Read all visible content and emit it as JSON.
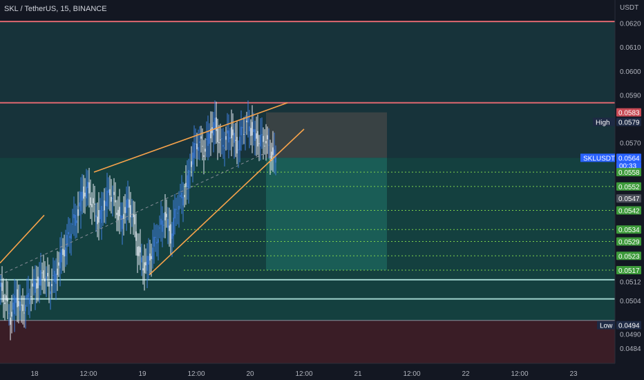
{
  "title": "SKL / TetherUS, 15, BINANCE",
  "currency": "USDT",
  "colors": {
    "background": "#131722",
    "upper_zone": "#17333a",
    "target_zone": "#14403f",
    "loss_zone": "#3a1d26",
    "candle": "#3f7fe0",
    "resistance": "#e06870",
    "support": "#9fd3cd",
    "trendline": "#f7a34b",
    "target_line": "#7fd34d",
    "stop_box": "#484848",
    "target_box": "#1d6a61"
  },
  "chart_data": {
    "type": "candlestick",
    "symbol": "SKLUSDT",
    "interval": "15",
    "exchange": "BINANCE",
    "xlabels": [
      "18",
      "12:00",
      "19",
      "12:00",
      "20",
      "12:00",
      "21",
      "12:00",
      "22",
      "12:00",
      "23"
    ],
    "ylim": [
      0.0478,
      0.063
    ],
    "yticks": [
      "0.0620",
      "0.0610",
      "0.0600",
      "0.0590",
      "0.0570",
      "0.0512",
      "0.0504",
      "0.0490",
      "0.0484"
    ],
    "horizontal_levels": {
      "resistance": [
        0.0621,
        0.0587
      ],
      "support": [
        0.0513,
        0.0505
      ],
      "bottom": 0.0496
    },
    "target_levels": [
      0.0558,
      0.0552,
      0.0542,
      0.0534,
      0.0529,
      0.0523,
      0.0517
    ],
    "price_tags": [
      {
        "label": "",
        "value": "0.0583",
        "kind": "stop"
      },
      {
        "label": "High",
        "value": "0.0579",
        "kind": "high"
      },
      {
        "label": "SKLUSDT",
        "value": "0.0564",
        "sub": "00:33",
        "kind": "last"
      },
      {
        "label": "",
        "value": "0.0558",
        "kind": "target"
      },
      {
        "label": "",
        "value": "0.0552",
        "kind": "target"
      },
      {
        "label": "",
        "value": "0.0547",
        "kind": "neutral"
      },
      {
        "label": "",
        "value": "0.0542",
        "kind": "target"
      },
      {
        "label": "",
        "value": "0.0534",
        "kind": "target"
      },
      {
        "label": "",
        "value": "0.0529",
        "kind": "target"
      },
      {
        "label": "",
        "value": "0.0523",
        "kind": "target"
      },
      {
        "label": "",
        "value": "0.0517",
        "kind": "target"
      },
      {
        "label": "Low",
        "value": "0.0494",
        "kind": "low"
      }
    ],
    "candle_anchors": [
      [
        0,
        0.051
      ],
      [
        1,
        0.0505
      ],
      [
        2,
        0.0497
      ],
      [
        3,
        0.0506
      ],
      [
        4,
        0.05
      ],
      [
        5,
        0.0504
      ],
      [
        6,
        0.051
      ],
      [
        7,
        0.0512
      ],
      [
        8,
        0.0516
      ],
      [
        9,
        0.051
      ],
      [
        10,
        0.0514
      ],
      [
        11,
        0.0522
      ],
      [
        12,
        0.0527
      ],
      [
        13,
        0.0535
      ],
      [
        14,
        0.054
      ],
      [
        15,
        0.0549
      ],
      [
        16,
        0.0551
      ],
      [
        17,
        0.0543
      ],
      [
        18,
        0.0538
      ],
      [
        19,
        0.0545
      ],
      [
        20,
        0.055
      ],
      [
        21,
        0.0544
      ],
      [
        22,
        0.0537
      ],
      [
        23,
        0.0545
      ],
      [
        24,
        0.0541
      ],
      [
        25,
        0.0526
      ],
      [
        26,
        0.0518
      ],
      [
        27,
        0.0521
      ],
      [
        28,
        0.0528
      ],
      [
        29,
        0.0534
      ],
      [
        30,
        0.054
      ],
      [
        31,
        0.0531
      ],
      [
        32,
        0.0543
      ],
      [
        33,
        0.0547
      ],
      [
        34,
        0.0554
      ],
      [
        35,
        0.0566
      ],
      [
        36,
        0.0571
      ],
      [
        37,
        0.0567
      ],
      [
        38,
        0.0574
      ],
      [
        39,
        0.0578
      ],
      [
        40,
        0.0569
      ],
      [
        41,
        0.0572
      ],
      [
        42,
        0.0575
      ],
      [
        43,
        0.0568
      ],
      [
        44,
        0.0576
      ],
      [
        45,
        0.0578
      ],
      [
        46,
        0.0574
      ],
      [
        47,
        0.0571
      ],
      [
        48,
        0.0572
      ],
      [
        49,
        0.0566
      ],
      [
        50,
        0.0564
      ]
    ],
    "trendlines": [
      {
        "from": [
          0,
          0.052
        ],
        "to": [
          8,
          0.054
        ]
      },
      {
        "from": [
          17,
          0.0558
        ],
        "to": [
          52,
          0.0587
        ]
      },
      {
        "from": [
          27,
          0.0515
        ],
        "to": [
          55,
          0.0576
        ]
      },
      {
        "from": [
          0,
          0.0515
        ],
        "to": [
          48,
          0.0566
        ],
        "dashed": true
      }
    ],
    "position_box": {
      "entry": 0.0564,
      "stop": 0.0583,
      "target": 0.0517,
      "start_index": 52,
      "end_index": 70
    },
    "grid": true,
    "legend": "none"
  }
}
